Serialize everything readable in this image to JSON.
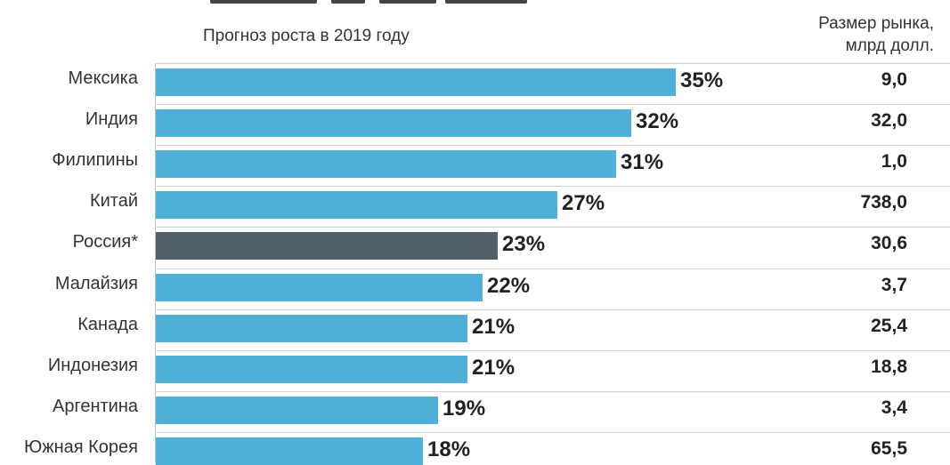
{
  "chart_data": {
    "type": "bar",
    "orientation": "horizontal",
    "title": "",
    "subtitle": "Прогноз роста в 2019 году",
    "market_header": [
      "Размер рынка,",
      "млрд долл."
    ],
    "categories": [
      "Мексика",
      "Индия",
      "Филипины",
      "Китай",
      "Россия*",
      "Малайзия",
      "Канада",
      "Индонезия",
      "Аргентина",
      "Южная Корея"
    ],
    "values": [
      35,
      32,
      31,
      27,
      23,
      22,
      21,
      21,
      19,
      18
    ],
    "value_labels": [
      "35%",
      "32%",
      "31%",
      "27%",
      "23%",
      "22%",
      "21%",
      "21%",
      "19%",
      "18%"
    ],
    "market_size": [
      "9,0",
      "32,0",
      "1,0",
      "738,0",
      "30,6",
      "3,7",
      "25,4",
      "18,8",
      "3,4",
      "65,5"
    ],
    "highlight": "Россия*",
    "xlim": [
      0,
      50
    ],
    "grid": false,
    "colors": {
      "bar": "#4fb0da",
      "highlight": "#515f68"
    }
  }
}
